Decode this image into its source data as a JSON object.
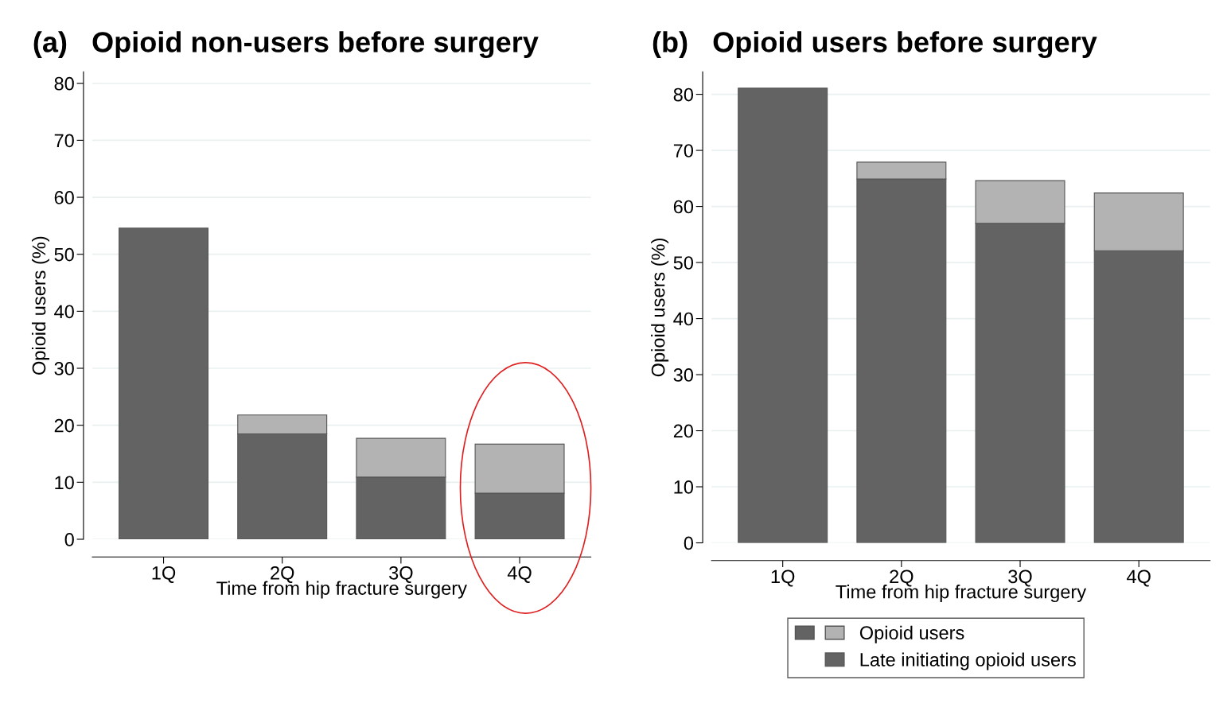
{
  "chart_data": [
    {
      "type": "bar",
      "title": "(a)   Opioid non-users before surgery",
      "xlabel": "Time from hip fracture surgery",
      "ylabel": "Opioid users (%)",
      "categories": [
        "1Q",
        "2Q",
        "3Q",
        "4Q"
      ],
      "stacked": true,
      "series": [
        {
          "color": "#636363",
          "values": [
            54.6,
            18.5,
            10.9,
            8.1
          ]
        },
        {
          "color": "#b3b3b3",
          "values": [
            null,
            3.3,
            6.8,
            8.6
          ]
        }
      ],
      "ylim": [
        0,
        82
      ],
      "yticks": [
        0,
        10,
        20,
        30,
        40,
        50,
        60,
        70,
        80
      ],
      "grid": "y",
      "legend": false
    },
    {
      "type": "bar",
      "title": "(b)   Opioid users before surgery",
      "xlabel": "Time from hip fracture surgery",
      "ylabel": "Opioid users (%)",
      "categories": [
        "1Q",
        "2Q",
        "3Q",
        "4Q"
      ],
      "stacked": true,
      "series": [
        {
          "name": "Late initiating opioid users",
          "color": "#636363",
          "values": [
            81.1,
            64.9,
            57.0,
            52.1
          ]
        },
        {
          "name": "Opioid users",
          "color": "#b3b3b3",
          "values": [
            null,
            3.0,
            7.6,
            10.3
          ]
        }
      ],
      "ylim": [
        0,
        84
      ],
      "yticks": [
        0,
        10,
        20,
        30,
        40,
        50,
        60,
        70,
        80
      ],
      "grid": "y",
      "legend": "bottom"
    }
  ]
}
